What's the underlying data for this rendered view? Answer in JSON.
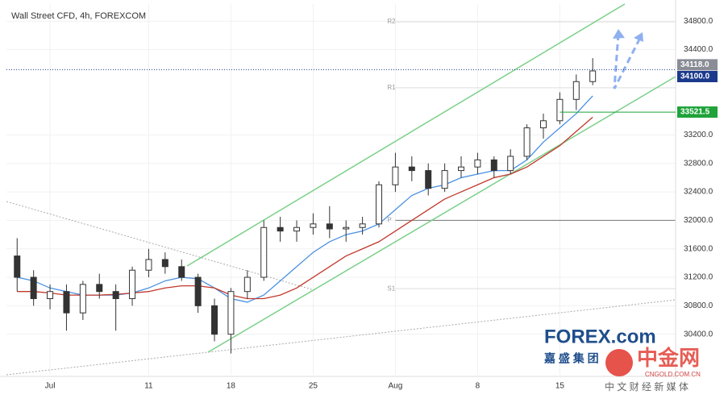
{
  "chart_data": {
    "type": "candlestick",
    "title": "Wall Street CFD, 4h, FOREXCOM",
    "xlim": [
      -2.65,
      38.04
    ],
    "ylim": [
      29830,
      35040
    ],
    "xticks": [
      {
        "value": 0,
        "label": "Jul"
      },
      {
        "value": 6,
        "label": "11"
      },
      {
        "value": 11,
        "label": "18"
      },
      {
        "value": 16,
        "label": "25"
      },
      {
        "value": 21,
        "label": "Aug"
      },
      {
        "value": 26,
        "label": "8"
      },
      {
        "value": 31,
        "label": "15"
      }
    ],
    "yticks": [
      {
        "value": 30400,
        "label": "30400.0"
      },
      {
        "value": 30800,
        "label": "30800.0"
      },
      {
        "value": 31200,
        "label": "31200.0"
      },
      {
        "value": 31600,
        "label": "31600.0"
      },
      {
        "value": 32000,
        "label": "32000.0"
      },
      {
        "value": 32400,
        "label": "32400.0"
      },
      {
        "value": 32800,
        "label": "32800.0"
      },
      {
        "value": 33200,
        "label": "33200.0"
      },
      {
        "value": 34400,
        "label": "34400.0"
      },
      {
        "value": 34800,
        "label": "34800.0"
      }
    ],
    "x": [
      -2,
      -1,
      0,
      1,
      2,
      3,
      4,
      5,
      6,
      7,
      8,
      9,
      10,
      11,
      12,
      13,
      14,
      15,
      16,
      17,
      18,
      19,
      20,
      21,
      22,
      23,
      24,
      25,
      26,
      27,
      28,
      29,
      30,
      31,
      32,
      33
    ],
    "open": [
      31500,
      31200,
      30900,
      31000,
      30700,
      31100,
      31000,
      30900,
      31300,
      31450,
      31350,
      31200,
      30800,
      30400,
      31000,
      31200,
      31900,
      31850,
      31900,
      31950,
      31880,
      31900,
      31950,
      32500,
      32750,
      32700,
      32450,
      32700,
      32750,
      32850,
      32700,
      32900,
      33300,
      33400,
      33700,
      33950
    ],
    "high": [
      31750,
      31300,
      31100,
      31100,
      31150,
      31250,
      31100,
      31350,
      31600,
      31550,
      31450,
      31250,
      30900,
      31050,
      31300,
      32000,
      32050,
      32000,
      32100,
      32200,
      32000,
      32050,
      32550,
      32950,
      32900,
      32800,
      32800,
      32900,
      32950,
      32900,
      33000,
      33350,
      33500,
      33800,
      34050,
      34280
    ],
    "low": [
      31000,
      30800,
      30750,
      30450,
      30600,
      30900,
      30450,
      30800,
      31200,
      31250,
      31150,
      30700,
      30300,
      30130,
      30900,
      31150,
      31700,
      31700,
      31800,
      31750,
      31700,
      31800,
      31900,
      32400,
      32550,
      32350,
      32400,
      32600,
      32650,
      32600,
      32650,
      32850,
      33150,
      33350,
      33550,
      33900
    ],
    "close": [
      31200,
      30900,
      31000,
      30700,
      31100,
      31000,
      30900,
      31300,
      31450,
      31350,
      31200,
      30800,
      30400,
      31000,
      31200,
      31900,
      31850,
      31900,
      31950,
      31880,
      31900,
      31950,
      32500,
      32750,
      32700,
      32450,
      32700,
      32750,
      32850,
      32700,
      32900,
      33300,
      33400,
      33700,
      33950,
      34100
    ],
    "series": [
      {
        "color": "#4a90e2",
        "values": [
          31200,
          31150,
          31050,
          31000,
          30950,
          30950,
          30950,
          30980,
          31050,
          31150,
          31200,
          31180,
          31050,
          30900,
          30850,
          30950,
          31150,
          31350,
          31550,
          31700,
          31800,
          31850,
          31950,
          32150,
          32350,
          32450,
          32500,
          32600,
          32650,
          32700,
          32700,
          32850,
          33100,
          33300,
          33500,
          33750
        ]
      },
      {
        "color": "#c0392b",
        "values": [
          31000,
          31000,
          30980,
          30950,
          30950,
          30950,
          30960,
          30980,
          31000,
          31050,
          31080,
          31080,
          31050,
          30950,
          30900,
          30900,
          30950,
          31050,
          31200,
          31350,
          31500,
          31600,
          31700,
          31850,
          32000,
          32150,
          32300,
          32400,
          32500,
          32600,
          32650,
          32750,
          32900,
          33050,
          33250,
          33450
        ]
      }
    ],
    "pivots": [
      {
        "label": "R2",
        "value": 34790
      },
      {
        "label": "R1",
        "value": 33863
      },
      {
        "label": "P",
        "value": 32000
      },
      {
        "label": "S1",
        "value": 31040
      }
    ],
    "price_labels": [
      {
        "value": 34118,
        "label": "34118.0",
        "color": "#8a8d96"
      },
      {
        "value": 34100,
        "label": "34100.0",
        "color": "#1c3a8c"
      },
      {
        "value": 33521.5,
        "label": "33521.5",
        "color": "#1fa33a"
      }
    ]
  },
  "watermark": {
    "brand": "FOREX.com",
    "brand_cn": "嘉 盛 集 团",
    "site": "中金网",
    "site_url": "CNGOLD.COM.CN",
    "slogan": "中 文 财 经 新 媒 体"
  }
}
